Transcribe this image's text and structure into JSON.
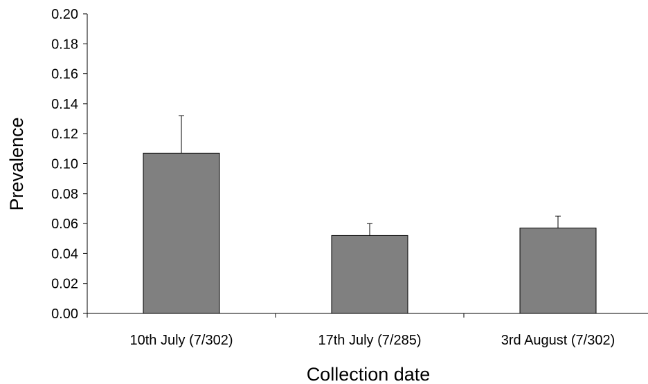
{
  "chart_data": {
    "type": "bar",
    "title": "",
    "xlabel": "Collection date",
    "ylabel": "Prevalence",
    "categories": [
      "10th July (7/302)",
      "17th July (7/285)",
      "3rd August (7/302)"
    ],
    "values": [
      0.107,
      0.052,
      0.057
    ],
    "error_upper": [
      0.132,
      0.06,
      0.065
    ],
    "ylim": [
      0,
      0.2
    ],
    "yticks": [
      "0.00",
      "0.02",
      "0.04",
      "0.06",
      "0.08",
      "0.10",
      "0.12",
      "0.14",
      "0.16",
      "0.18",
      "0.20"
    ],
    "grid": false,
    "legend": "none",
    "bar_color": "#808080",
    "edge_color": "#000000"
  }
}
